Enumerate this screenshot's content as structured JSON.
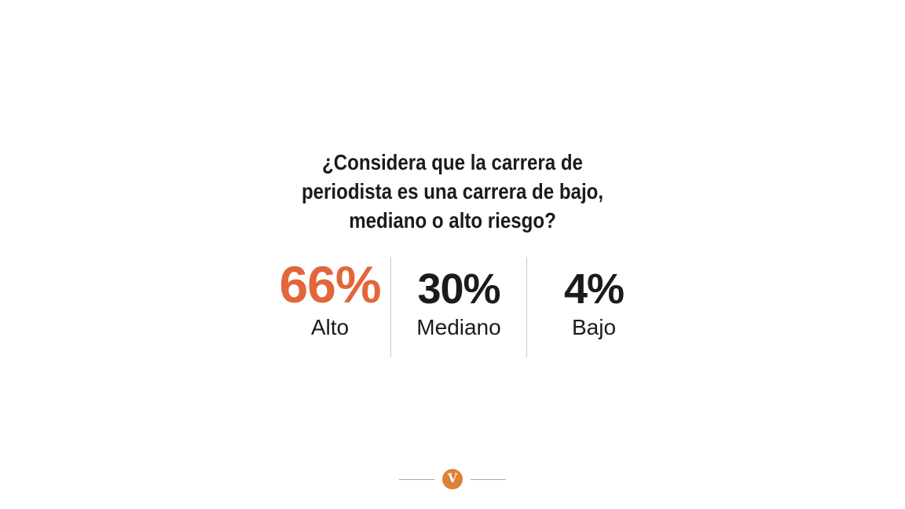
{
  "question": {
    "full_text": "¿Considera que la carrera de periodista es una carrera de bajo, mediano o alto riesgo?",
    "lines": [
      "¿Considera que la carrera de",
      "periodista es una carrera de bajo,",
      "mediano o alto riesgo?"
    ]
  },
  "chart_data": {
    "type": "table",
    "subtype": "stat-callout",
    "title": "¿Considera que la carrera de periodista es una carrera de bajo, mediano o alto riesgo?",
    "categories": [
      "Alto",
      "Mediano",
      "Bajo"
    ],
    "values": [
      66,
      30,
      4
    ],
    "unit": "%",
    "items": [
      {
        "value_text": "66%",
        "label": "Alto",
        "emphasized": true
      },
      {
        "value_text": "30%",
        "label": "Mediano",
        "emphasized": false
      },
      {
        "value_text": "4%",
        "label": "Bajo",
        "emphasized": false
      }
    ],
    "legend": "none",
    "grid": false
  },
  "footer": {
    "logo_letter": "V"
  },
  "colors": {
    "accent_orange": "#e2663b",
    "text_black": "#1b1b1b",
    "divider_gray": "#cccccc",
    "footer_line_gray": "#a8a8a8",
    "logo_orange": "#dd8038",
    "logo_letter_color": "#ffffff",
    "background": "#ffffff"
  }
}
